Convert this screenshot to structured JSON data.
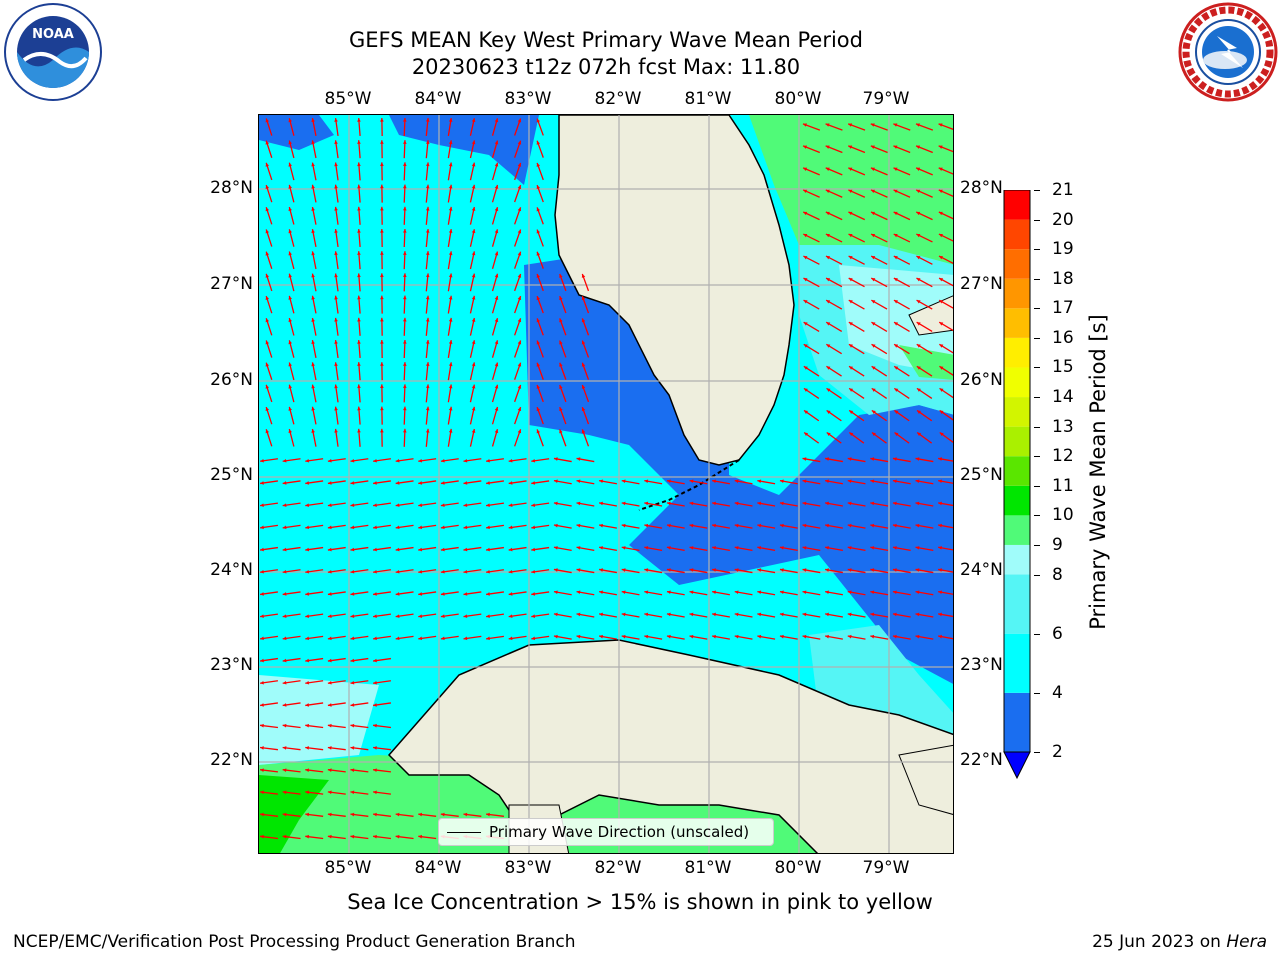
{
  "title": {
    "line1": "GEFS MEAN Key West Primary Wave Mean Period",
    "line2": "20230623 t12z 072h fcst   Max: 11.80"
  },
  "logos": {
    "left": {
      "icon": "noaa-logo",
      "text": "NOAA",
      "ring_text": "NATIONAL OCEANIC AND ATMOSPHERIC ADMINISTRATION · U.S. DEPARTMENT OF COMMERCE"
    },
    "right": {
      "icon": "nws-logo",
      "ring_text": "NATIONAL WEATHER SERVICE"
    }
  },
  "map": {
    "lon_labels": [
      "85°W",
      "84°W",
      "83°W",
      "82°W",
      "81°W",
      "80°W",
      "79°W"
    ],
    "lat_labels": [
      "28°N",
      "27°N",
      "26°N",
      "25°N",
      "24°N",
      "23°N",
      "22°N"
    ],
    "legend_label": "Primary Wave Direction (unscaled)",
    "colors": {
      "land": "#eeeedd",
      "coastline": "#000000",
      "grid": "#b0b0b0",
      "arrow": "#ff0000"
    }
  },
  "colorbar": {
    "label": "Primary Wave Mean Period [s]",
    "ticks": [
      "21",
      "20",
      "19",
      "18",
      "17",
      "16",
      "15",
      "14",
      "13",
      "12",
      "11",
      "10",
      "9",
      "8",
      "6",
      "4",
      "2"
    ],
    "bands": [
      {
        "from": 2,
        "to": 4,
        "color": "#1a6ef0"
      },
      {
        "from": 4,
        "to": 6,
        "color": "#00ffff"
      },
      {
        "from": 6,
        "to": 8,
        "color": "#55f5f5"
      },
      {
        "from": 8,
        "to": 9,
        "color": "#a0fcfa"
      },
      {
        "from": 9,
        "to": 10,
        "color": "#50fa78"
      },
      {
        "from": 10,
        "to": 11,
        "color": "#00e600"
      },
      {
        "from": 11,
        "to": 12,
        "color": "#5ae600"
      },
      {
        "from": 12,
        "to": 13,
        "color": "#aaf000"
      },
      {
        "from": 13,
        "to": 14,
        "color": "#d2f500"
      },
      {
        "from": 14,
        "to": 15,
        "color": "#f0ff00"
      },
      {
        "from": 15,
        "to": 16,
        "color": "#ffee00"
      },
      {
        "from": 16,
        "to": 17,
        "color": "#ffbe00"
      },
      {
        "from": 17,
        "to": 18,
        "color": "#ff9600"
      },
      {
        "from": 18,
        "to": 19,
        "color": "#ff6e00"
      },
      {
        "from": 19,
        "to": 20,
        "color": "#ff4600"
      },
      {
        "from": 20,
        "to": 21,
        "color": "#ff0000"
      }
    ],
    "under_color": "#0000ff"
  },
  "notes": {
    "ice": "Sea Ice Concentration > 15% is shown in pink to yellow",
    "footer_left": "NCEP/EMC/Verification Post Processing Product Generation Branch",
    "footer_date": "25 Jun 2023 on ",
    "footer_host": "Hera"
  }
}
